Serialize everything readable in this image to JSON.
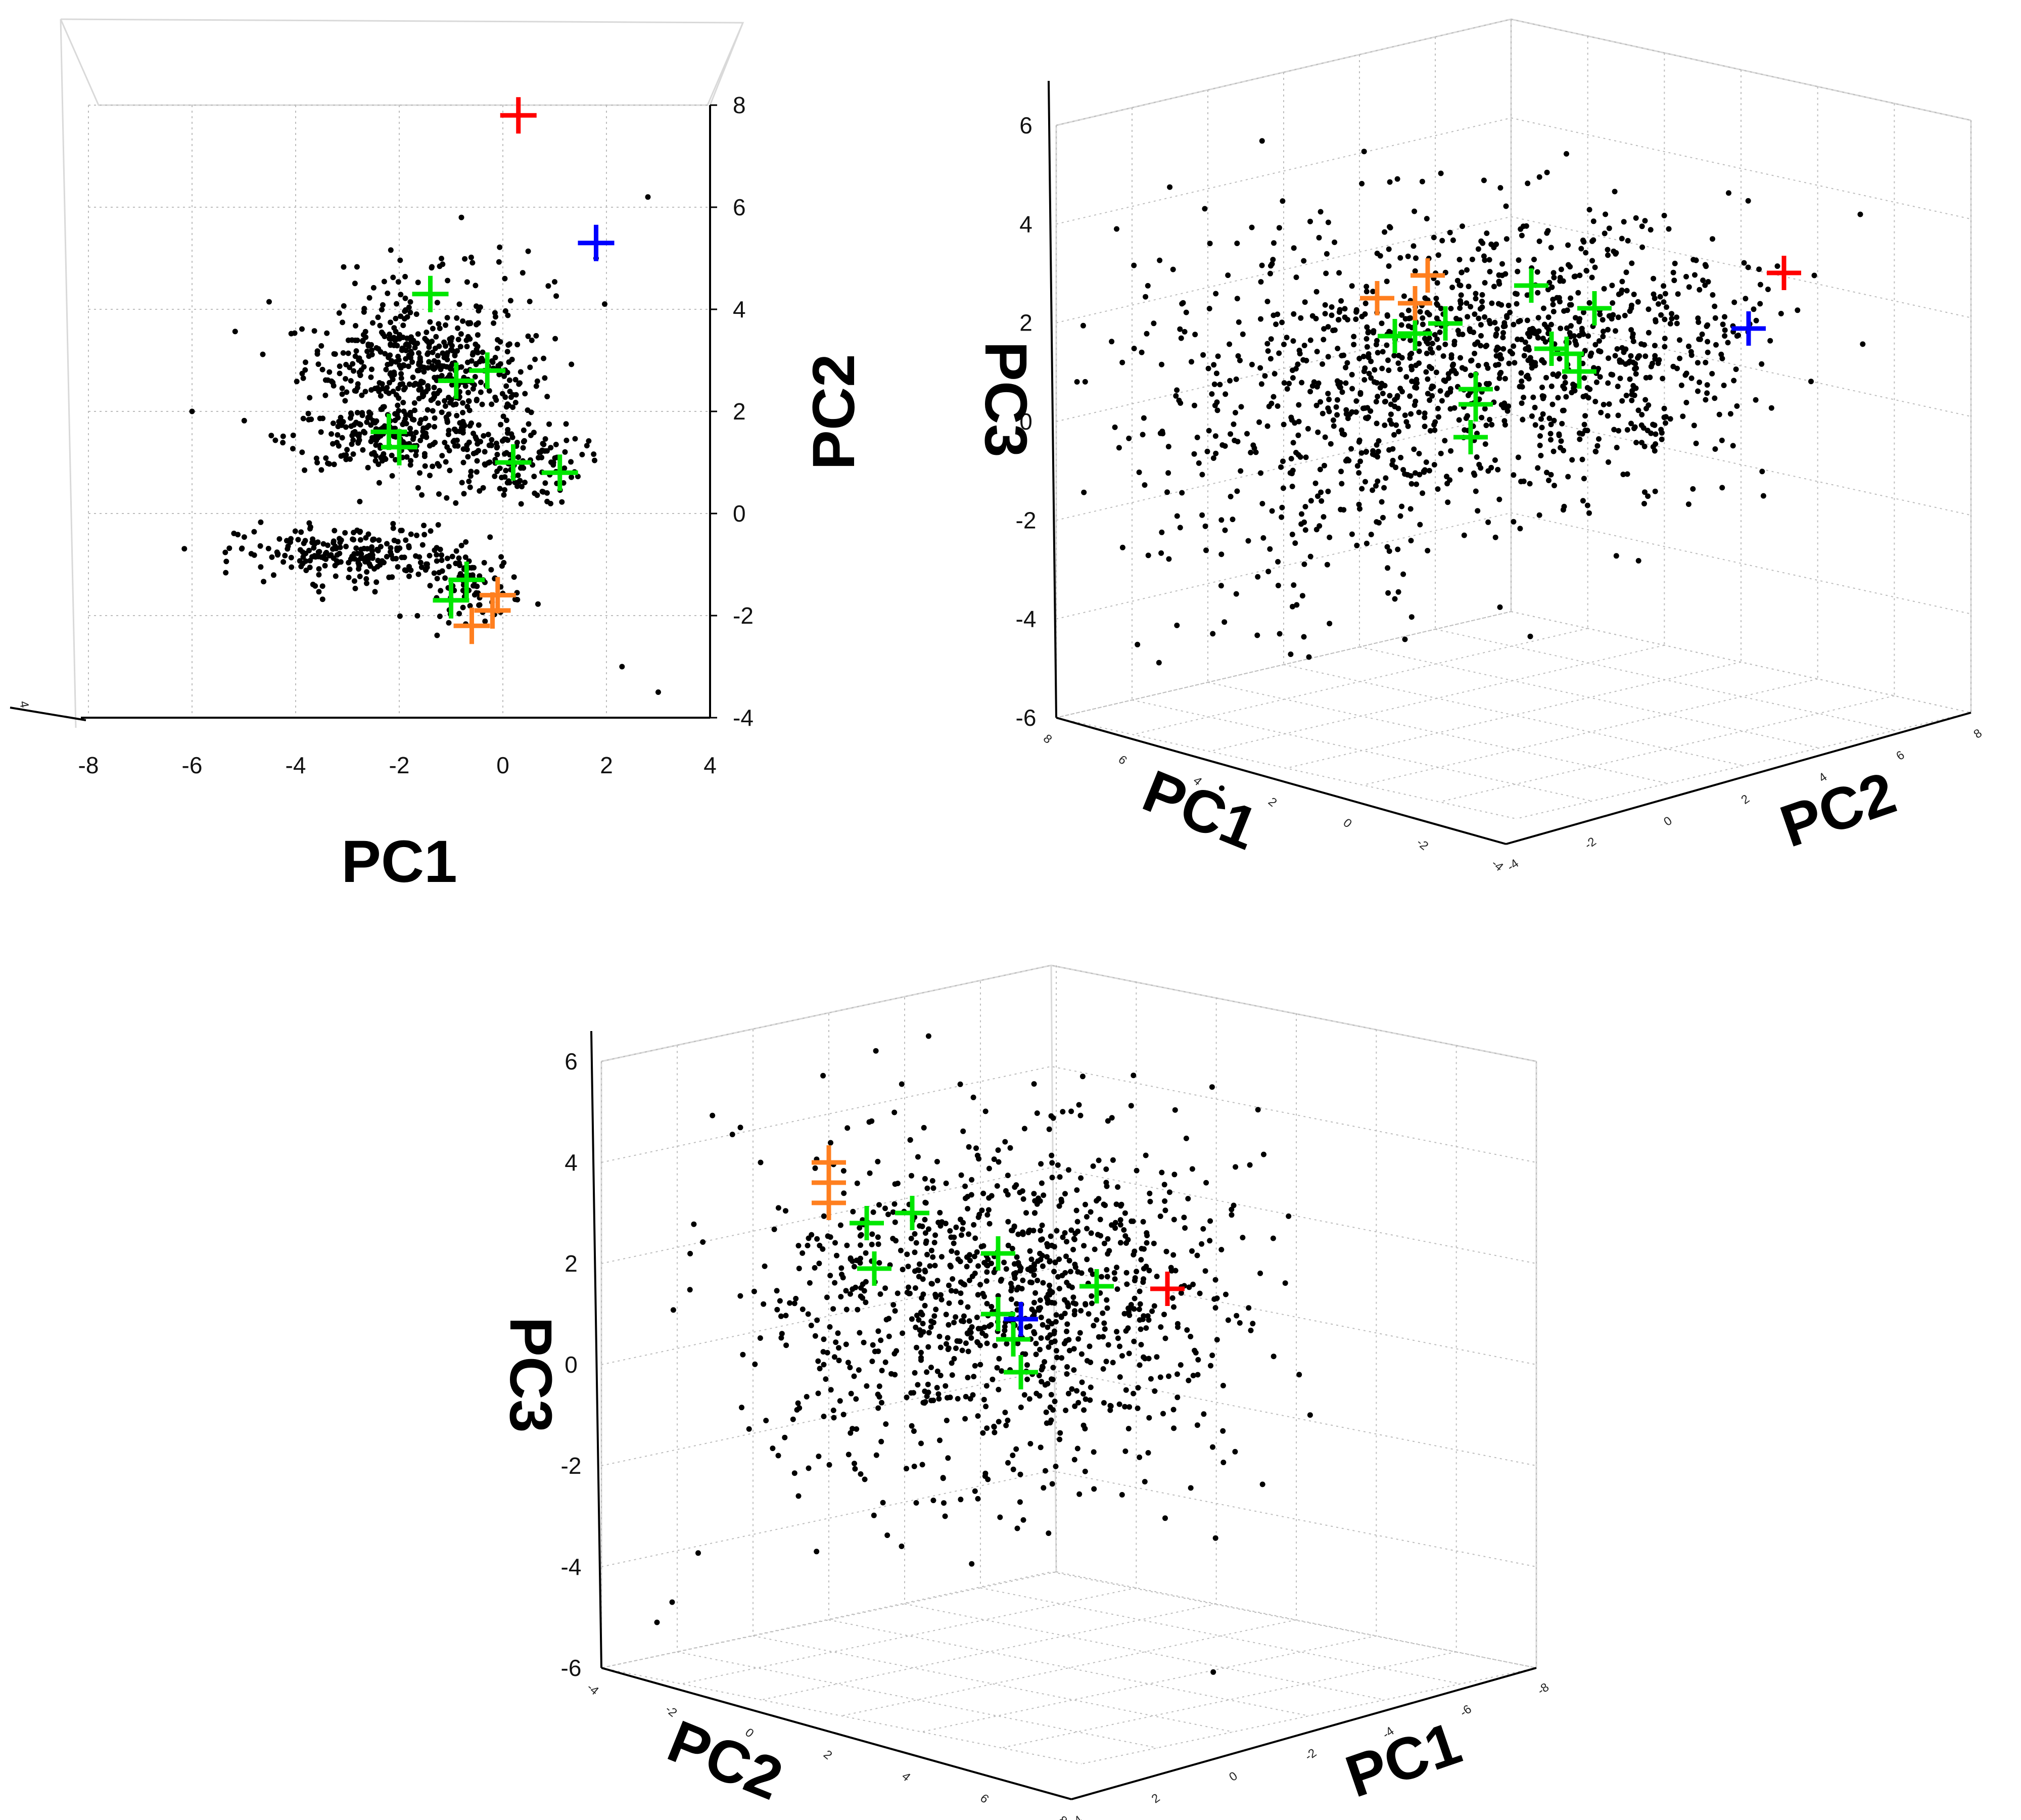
{
  "colors": {
    "points": "#000000",
    "red": "#ff0000",
    "blue": "#0000ff",
    "green": "#00e600",
    "orange": "#ff7f1f"
  },
  "chart_data": [
    {
      "type": "scatter",
      "view": "top",
      "title": "",
      "xlabel": "PC1",
      "ylabel": "PC2",
      "xlim": [
        -8,
        4
      ],
      "ylim": [
        -4,
        8
      ],
      "xticks": [
        "-8",
        "-6",
        "-4",
        "-2",
        "0",
        "2",
        "4"
      ],
      "yticks": [
        "-4",
        "-2",
        "0",
        "2",
        "4",
        "6",
        "8"
      ],
      "series": [
        {
          "name": "red",
          "color": "red",
          "marker": "plus",
          "points": [
            [
              0.3,
              7.8
            ]
          ]
        },
        {
          "name": "blue",
          "color": "blue",
          "marker": "plus",
          "points": [
            [
              1.8,
              5.3
            ]
          ]
        },
        {
          "name": "green",
          "color": "green",
          "marker": "plus",
          "points": [
            [
              -1.4,
              4.3
            ],
            [
              -0.9,
              2.6
            ],
            [
              -0.3,
              2.8
            ],
            [
              -2.2,
              1.6
            ],
            [
              -2.0,
              1.3
            ],
            [
              0.2,
              1.0
            ],
            [
              1.1,
              0.8
            ],
            [
              -1.0,
              -1.7
            ],
            [
              -0.7,
              -1.3
            ]
          ]
        },
        {
          "name": "orange",
          "color": "orange",
          "marker": "plus",
          "points": [
            [
              -0.1,
              -1.6
            ],
            [
              -0.2,
              -1.9
            ],
            [
              -0.6,
              -2.2
            ]
          ]
        }
      ]
    },
    {
      "type": "scatter3d",
      "view": "oblique",
      "title": "",
      "zlabel": "PC3",
      "xlabel": "PC1",
      "ylabel": "PC2",
      "zlim": [
        -6,
        6
      ],
      "zticks": [
        "6",
        "4",
        "2",
        "0",
        "-2",
        "-4",
        "-6"
      ],
      "pc1_ticks": [
        "8",
        "6",
        "4",
        "2",
        "0",
        "-2",
        "-4"
      ],
      "pc2_ticks": [
        "-4",
        "-2",
        "0",
        "2",
        "4",
        "6",
        "8"
      ],
      "series": [
        {
          "name": "red",
          "color": "red",
          "marker": "plus"
        },
        {
          "name": "blue",
          "color": "blue",
          "marker": "plus"
        },
        {
          "name": "green",
          "color": "green",
          "marker": "plus"
        },
        {
          "name": "orange",
          "color": "orange",
          "marker": "plus"
        }
      ]
    },
    {
      "type": "scatter3d",
      "view": "oblique",
      "title": "",
      "zlabel": "PC3",
      "xlabel": "PC2",
      "ylabel": "PC1",
      "zlim": [
        -6,
        6
      ],
      "zticks": [
        "6",
        "4",
        "2",
        "0",
        "-2",
        "-4",
        "-6"
      ],
      "pc2_ticks": [
        "-4",
        "-2",
        "0",
        "2",
        "4",
        "6",
        "8"
      ],
      "pc1_ticks": [
        "4",
        "2",
        "0",
        "-2",
        "-4",
        "-6",
        "-8"
      ],
      "series": [
        {
          "name": "red",
          "color": "red",
          "marker": "plus"
        },
        {
          "name": "blue",
          "color": "blue",
          "marker": "plus"
        },
        {
          "name": "green",
          "color": "green",
          "marker": "plus"
        },
        {
          "name": "orange",
          "color": "orange",
          "marker": "plus"
        }
      ]
    }
  ],
  "labels": {
    "pc1": "PC1",
    "pc2": "PC2",
    "pc3": "PC3"
  }
}
